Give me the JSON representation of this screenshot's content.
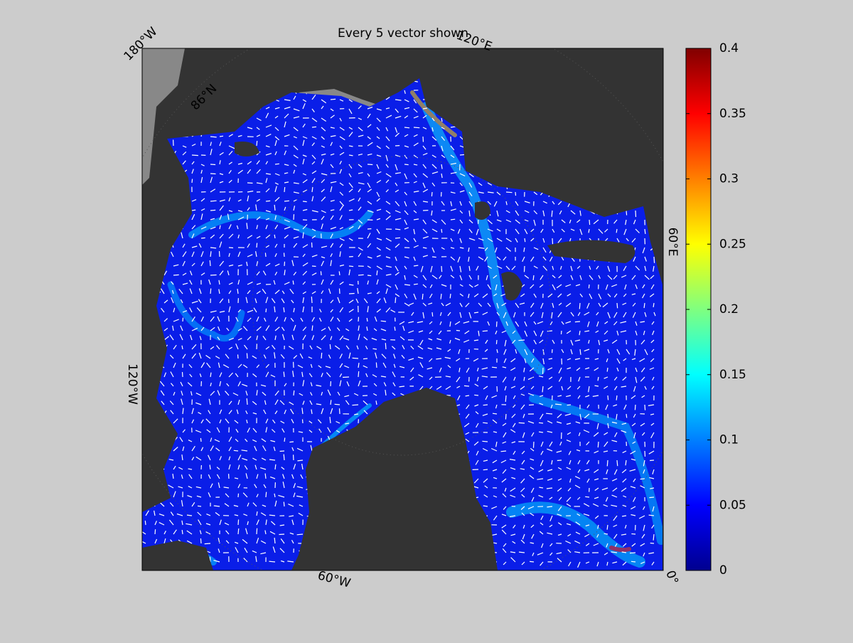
{
  "map": {
    "title": "Every 5 vector shown",
    "grid_labels": [
      "180°W",
      "120°E",
      "60°E",
      "0°",
      "60°W",
      "120°W",
      "86°N"
    ],
    "colorbar": {
      "lim": [
        0,
        0.4
      ],
      "ticks": [
        0,
        0.05,
        0.1,
        0.15,
        0.2,
        0.25,
        0.3,
        0.35,
        0.4
      ]
    }
  }
}
